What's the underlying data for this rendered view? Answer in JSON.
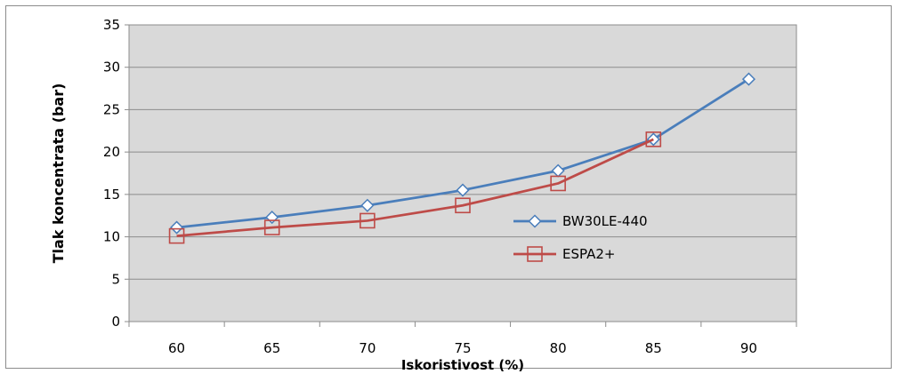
{
  "chart_data": {
    "type": "line",
    "title": "",
    "xlabel": "Iskoristivost (%)",
    "ylabel": "Tlak koncentrata (bar)",
    "categories": [
      "60",
      "65",
      "70",
      "75",
      "80",
      "85",
      "90"
    ],
    "ylim": [
      0,
      35
    ],
    "yticks": [
      "0",
      "5",
      "10",
      "15",
      "20",
      "25",
      "30",
      "35"
    ],
    "grid": true,
    "legend_position": "right",
    "series": [
      {
        "name": "BW30LE-440",
        "color": "#4a7ebb",
        "marker": "diamond",
        "values": [
          11.1,
          12.3,
          13.7,
          15.5,
          17.8,
          21.5,
          28.6
        ]
      },
      {
        "name": "ESPA2+",
        "color": "#be4b48",
        "marker": "square",
        "values": [
          10.1,
          11.1,
          11.9,
          13.7,
          16.3,
          21.5,
          null
        ]
      }
    ]
  }
}
